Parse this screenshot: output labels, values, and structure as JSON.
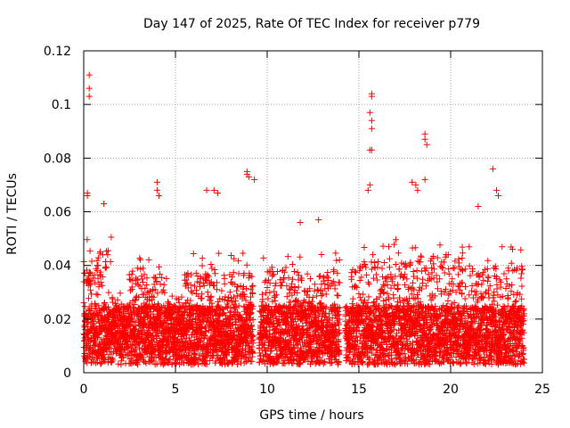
{
  "chart_data": {
    "type": "scatter",
    "title": "Day 147 of 2025, Rate Of TEC Index for receiver p779",
    "xlabel": "GPS time / hours",
    "ylabel": "ROTI / TECUs",
    "xlim": [
      0,
      25
    ],
    "ylim": [
      0,
      0.12
    ],
    "x_ticks": [
      0,
      5,
      10,
      15,
      20,
      25
    ],
    "x_tick_labels": [
      "0",
      "5",
      "10",
      "15",
      "20",
      "25"
    ],
    "y_ticks": [
      0,
      0.02,
      0.04,
      0.06,
      0.08,
      0.1,
      0.12
    ],
    "y_tick_labels": [
      "0",
      "0.02",
      "0.04",
      "0.06",
      "0.08",
      "0.1",
      "0.12"
    ],
    "grid": true,
    "marker": "+",
    "series": [
      {
        "name": "ROTI",
        "color": "#ff0000",
        "data_range_hours": [
          0,
          24
        ],
        "baseline_range": [
          0.003,
          0.045
        ],
        "notable_points": [
          [
            0.3,
            0.111
          ],
          [
            0.3,
            0.106
          ],
          [
            0.3,
            0.103
          ],
          [
            0.2,
            0.067
          ],
          [
            0.2,
            0.066
          ],
          [
            1.1,
            0.063
          ],
          [
            4.0,
            0.071
          ],
          [
            4.0,
            0.068
          ],
          [
            4.1,
            0.066
          ],
          [
            6.7,
            0.068
          ],
          [
            7.1,
            0.068
          ],
          [
            7.3,
            0.067
          ],
          [
            8.9,
            0.075
          ],
          [
            8.9,
            0.074
          ],
          [
            9.0,
            0.073
          ],
          [
            9.3,
            0.072
          ],
          [
            15.7,
            0.104
          ],
          [
            15.7,
            0.103
          ],
          [
            15.6,
            0.097
          ],
          [
            15.7,
            0.094
          ],
          [
            15.7,
            0.091
          ],
          [
            15.6,
            0.083
          ],
          [
            15.7,
            0.083
          ],
          [
            15.6,
            0.07
          ],
          [
            15.5,
            0.068
          ],
          [
            17.9,
            0.071
          ],
          [
            18.1,
            0.07
          ],
          [
            18.2,
            0.068
          ],
          [
            18.6,
            0.089
          ],
          [
            18.6,
            0.087
          ],
          [
            18.7,
            0.085
          ],
          [
            18.6,
            0.072
          ],
          [
            22.3,
            0.076
          ],
          [
            22.5,
            0.068
          ],
          [
            22.6,
            0.066
          ],
          [
            21.5,
            0.062
          ],
          [
            12.8,
            0.057
          ],
          [
            11.8,
            0.056
          ]
        ]
      }
    ]
  }
}
